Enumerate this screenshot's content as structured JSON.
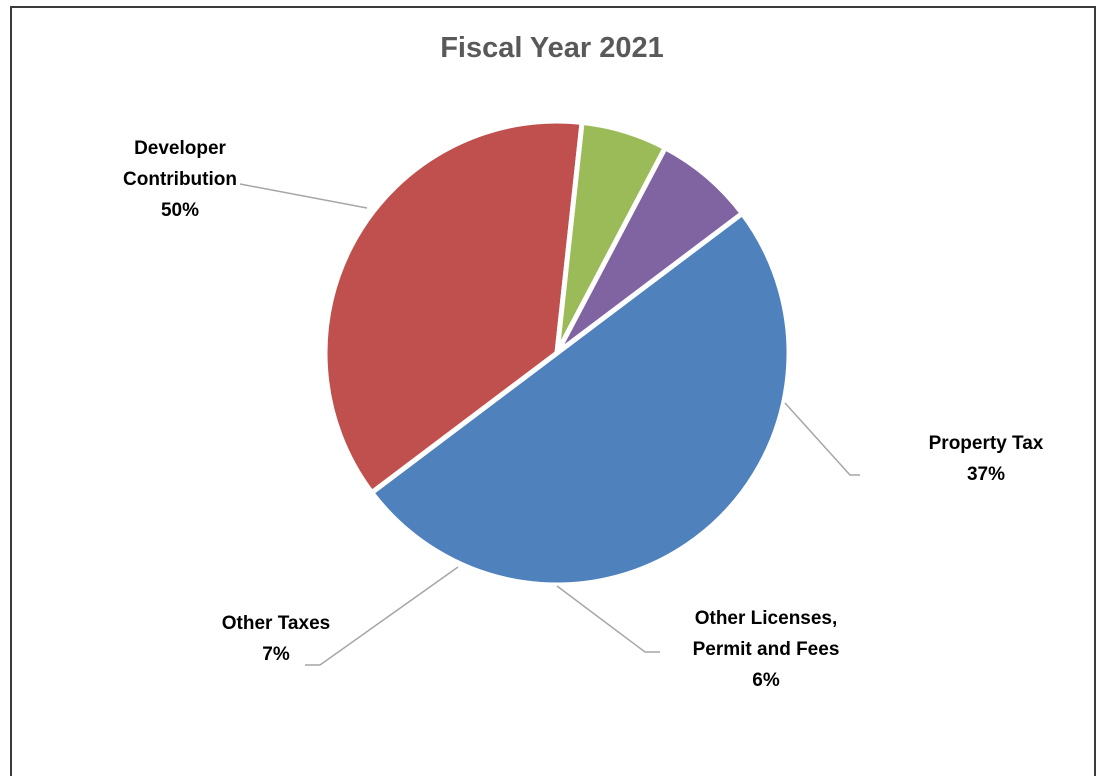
{
  "chart_data": {
    "type": "pie",
    "title": "Fiscal Year 2021",
    "slices": [
      {
        "name": "Developer Contribution",
        "label_lines": [
          "Developer",
          "Contribution",
          "50%"
        ],
        "value": 50,
        "color": "#4f81bd"
      },
      {
        "name": "Property Tax",
        "label_lines": [
          "Property Tax",
          "37%"
        ],
        "value": 37,
        "color": "#c0504d"
      },
      {
        "name": "Other Licenses, Permit and Fees",
        "label_lines": [
          "Other Licenses,",
          "Permit and Fees",
          "6%"
        ],
        "value": 6,
        "color": "#9bbb59"
      },
      {
        "name": "Other Taxes",
        "label_lines": [
          "Other Taxes",
          "7%"
        ],
        "value": 7,
        "color": "#8064a2"
      }
    ],
    "legend": "none",
    "label_style": "outside with leader lines"
  }
}
